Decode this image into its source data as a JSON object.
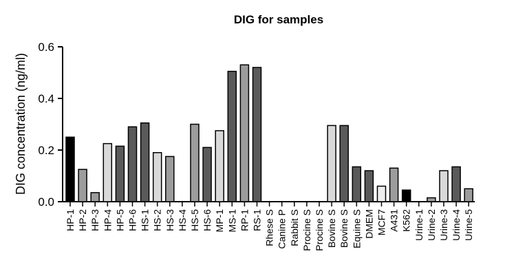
{
  "chart_data": {
    "type": "bar",
    "title": "DIG for samples",
    "xlabel": "",
    "ylabel": "DIG concentration (ng/ml)",
    "ylim": [
      0,
      0.6
    ],
    "yticks": [
      "0.0",
      "0.2",
      "0.4",
      "0.6"
    ],
    "ytick_values": [
      0.0,
      0.2,
      0.4,
      0.6
    ],
    "grid": false,
    "categories": [
      "HP-1",
      "HP-2",
      "HP-3",
      "HP-4",
      "HP-5",
      "HP-6",
      "HS-1",
      "HS-2",
      "HS-3",
      "HS-4",
      "HS-5",
      "HS-6",
      "MP-1",
      "MS-1",
      "RP-1",
      "RS-1",
      "Rhese S",
      "Canine P",
      "Rabbit S",
      "Procine S",
      "Procine S",
      "Bovine S",
      "Bovine S",
      "Equine S",
      "DMEM",
      "MCF7",
      "A431",
      "K562",
      "Urine-1",
      "Urine-2",
      "Urine-3",
      "Urine-4",
      "Urine-5"
    ],
    "values": [
      0.25,
      0.125,
      0.035,
      0.225,
      0.215,
      0.29,
      0.305,
      0.19,
      0.175,
      0,
      0.3,
      0.21,
      0.275,
      0.505,
      0.53,
      0.52,
      0,
      0,
      0,
      0,
      0,
      0.295,
      0.295,
      0.135,
      0.12,
      0.06,
      0.13,
      0.045,
      0,
      0.015,
      0.12,
      0.135,
      0.05
    ],
    "bar_colors": [
      "#000000",
      "#9c9c9c",
      "#9c9c9c",
      "#d9d9d9",
      "#5a5a5a",
      "#5a5a5a",
      "#5a5a5a",
      "#d9d9d9",
      "#9c9c9c",
      "#9c9c9c",
      "#9c9c9c",
      "#5a5a5a",
      "#d9d9d9",
      "#5a5a5a",
      "#9c9c9c",
      "#5a5a5a",
      "#9c9c9c",
      "#9c9c9c",
      "#9c9c9c",
      "#9c9c9c",
      "#9c9c9c",
      "#d9d9d9",
      "#5a5a5a",
      "#5a5a5a",
      "#5a5a5a",
      "#eeeeee",
      "#9c9c9c",
      "#000000",
      "#9c9c9c",
      "#9c9c9c",
      "#d9d9d9",
      "#5a5a5a",
      "#9c9c9c"
    ]
  }
}
